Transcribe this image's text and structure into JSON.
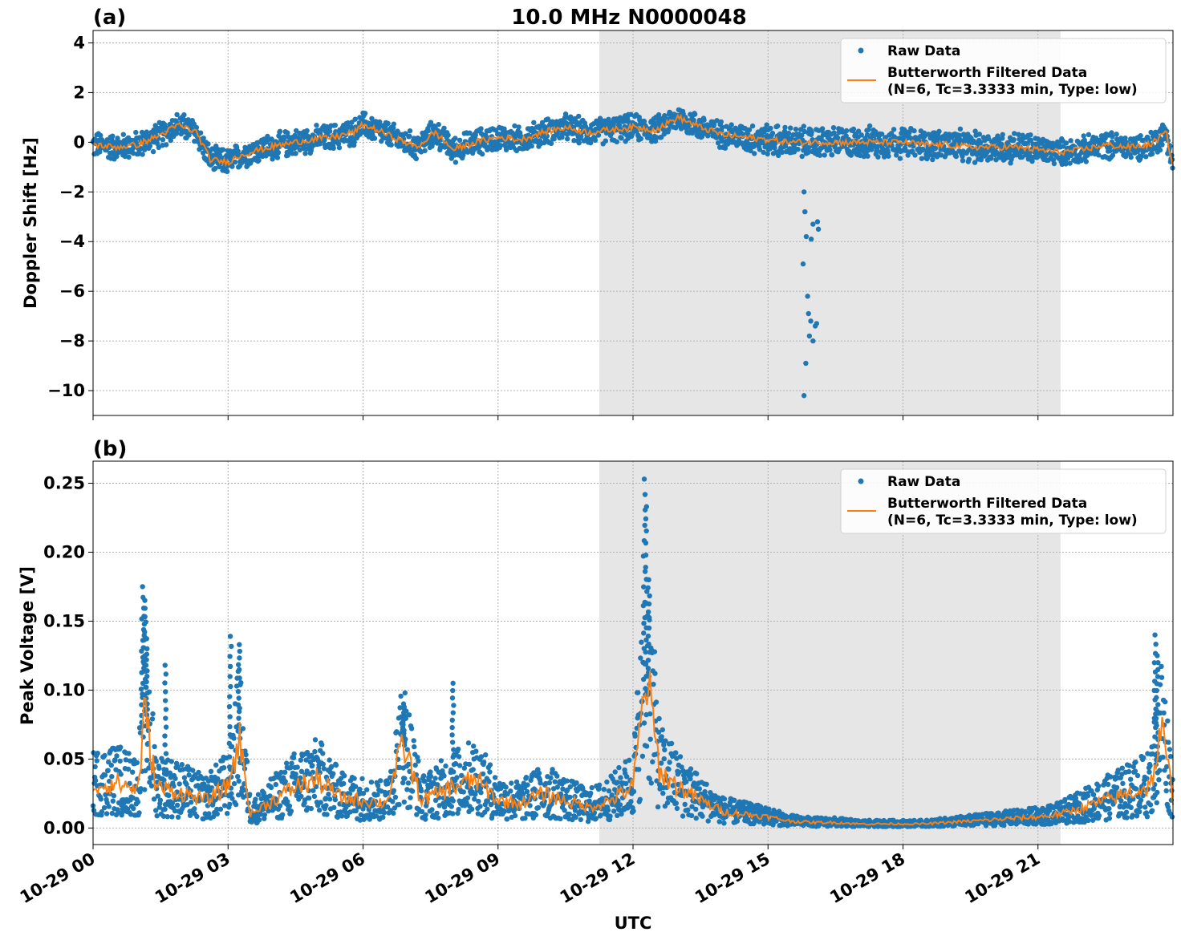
{
  "figure": {
    "title": "10.0 MHz N0000048",
    "xlabel": "UTC"
  },
  "colors": {
    "raw": "#1f77b4",
    "filtered": "#ff7f0e",
    "shade": "#e6e6e6",
    "grid": "#b0b0b0"
  },
  "legend": {
    "raw": "Raw Data",
    "filtered_line1": "Butterworth Filtered Data",
    "filtered_line2": "(N=6, Tc=3.3333 min, Type: low)"
  },
  "chart_data": [
    {
      "type": "scatter",
      "panel": "(a)",
      "ylabel": "Doppler Shift [Hz]",
      "xlim_hours": [
        0,
        24
      ],
      "ylim": [
        -11,
        4.5
      ],
      "yticks": [
        4,
        2,
        0,
        -2,
        -4,
        -6,
        -8,
        -10
      ],
      "ytick_labels": [
        "4",
        "2",
        "0",
        "−2",
        "−4",
        "−6",
        "−8",
        "−10"
      ],
      "grid": true,
      "legend_position": "top-right",
      "shaded_interval_hours": [
        11.25,
        21.5
      ],
      "series": [
        {
          "name": "Butterworth Filtered Data",
          "kind": "line",
          "x_hours": [
            0,
            0.5,
            1,
            1.5,
            1.9,
            2.3,
            2.6,
            3,
            3.3,
            3.7,
            4.2,
            4.8,
            5.3,
            5.8,
            6,
            6.3,
            6.8,
            7.2,
            7.6,
            8,
            8.5,
            9,
            9.5,
            10,
            10.5,
            11,
            11.5,
            12,
            12.5,
            13,
            13.5,
            14,
            14.5,
            15,
            15.5,
            16,
            16.5,
            17,
            17.5,
            18,
            18.5,
            19,
            19.5,
            20,
            20.5,
            21,
            21.5,
            22,
            22.5,
            23,
            23.5,
            23.85,
            24
          ],
          "values": [
            -0.1,
            -0.2,
            -0.1,
            0.3,
            0.7,
            0.4,
            -0.7,
            -0.8,
            -0.5,
            -0.3,
            -0.1,
            0.1,
            0.2,
            0.4,
            0.7,
            0.5,
            0.1,
            -0.2,
            0.4,
            -0.3,
            0.0,
            0.2,
            0.1,
            0.4,
            0.6,
            0.4,
            0.5,
            0.6,
            0.5,
            1.0,
            0.6,
            0.3,
            0.2,
            0.1,
            0.0,
            0.0,
            0.0,
            0.0,
            0.0,
            0.0,
            -0.1,
            -0.1,
            -0.2,
            -0.2,
            -0.2,
            -0.3,
            -0.4,
            -0.3,
            -0.1,
            -0.2,
            -0.1,
            0.4,
            -1.0
          ]
        },
        {
          "name": "Raw Data",
          "kind": "scatter",
          "outliers_x_hours": [
            15.8,
            15.82,
            15.85,
            15.9,
            15.92,
            15.95,
            16.0,
            16.05,
            16.1,
            16.12,
            15.78,
            15.88,
            16.08,
            15.96
          ],
          "outliers_values": [
            -2.0,
            -2.8,
            -3.8,
            -6.9,
            -7.8,
            -7.2,
            -8.0,
            -7.4,
            -3.2,
            -3.5,
            -4.9,
            -6.2,
            -7.3,
            -3.9
          ],
          "extra_x_hours": [
            15.8,
            16.0,
            15.84
          ],
          "extra_values": [
            -10.2,
            -3.3,
            -8.9
          ]
        }
      ]
    },
    {
      "type": "scatter",
      "panel": "(b)",
      "ylabel": "Peak Voltage [V]",
      "xlim_hours": [
        0,
        24
      ],
      "ylim": [
        -0.012,
        0.266
      ],
      "yticks": [
        0.25,
        0.2,
        0.15,
        0.1,
        0.05,
        0.0
      ],
      "ytick_labels": [
        "0.25",
        "0.20",
        "0.15",
        "0.10",
        "0.05",
        "0.00"
      ],
      "xtick_labels": [
        "10-29 00",
        "10-29 03",
        "10-29 06",
        "10-29 09",
        "10-29 12",
        "10-29 15",
        "10-29 18",
        "10-29 21"
      ],
      "xtick_hours": [
        0,
        3,
        6,
        9,
        12,
        15,
        18,
        21
      ],
      "grid": true,
      "legend_position": "top-right",
      "shaded_interval_hours": [
        11.25,
        21.5
      ],
      "series": [
        {
          "name": "Butterworth Filtered Data",
          "kind": "line",
          "x_hours": [
            0,
            0.5,
            1,
            1.15,
            1.4,
            2,
            2.5,
            3,
            3.25,
            3.5,
            4,
            4.5,
            5,
            5.5,
            6,
            6.5,
            6.9,
            7.3,
            8,
            8.5,
            9,
            9.5,
            10,
            10.5,
            11,
            11.5,
            12,
            12.3,
            12.6,
            13,
            13.5,
            14,
            14.5,
            15,
            15.5,
            16,
            16.5,
            17,
            17.5,
            18,
            18.5,
            19,
            19.5,
            20,
            20.5,
            21,
            21.5,
            22,
            22.5,
            23,
            23.5,
            23.75,
            24
          ],
          "values": [
            0.03,
            0.033,
            0.028,
            0.085,
            0.03,
            0.025,
            0.02,
            0.03,
            0.065,
            0.01,
            0.02,
            0.03,
            0.035,
            0.022,
            0.02,
            0.018,
            0.06,
            0.02,
            0.03,
            0.035,
            0.02,
            0.018,
            0.025,
            0.02,
            0.015,
            0.02,
            0.03,
            0.11,
            0.04,
            0.03,
            0.02,
            0.012,
            0.01,
            0.008,
            0.005,
            0.004,
            0.004,
            0.003,
            0.003,
            0.003,
            0.003,
            0.004,
            0.005,
            0.006,
            0.007,
            0.008,
            0.01,
            0.015,
            0.02,
            0.025,
            0.03,
            0.07,
            0.022
          ]
        },
        {
          "name": "Raw Data",
          "kind": "scatter",
          "spikes_x_hours": [
            1.1,
            1.15,
            1.2,
            1.6,
            3.05,
            3.25,
            6.9,
            8.0,
            12.25,
            12.3,
            12.35,
            23.6,
            23.65
          ],
          "spikes_values": [
            0.175,
            0.165,
            0.13,
            0.118,
            0.139,
            0.133,
            0.09,
            0.105,
            0.253,
            0.233,
            0.18,
            0.14,
            0.125
          ]
        }
      ]
    }
  ]
}
